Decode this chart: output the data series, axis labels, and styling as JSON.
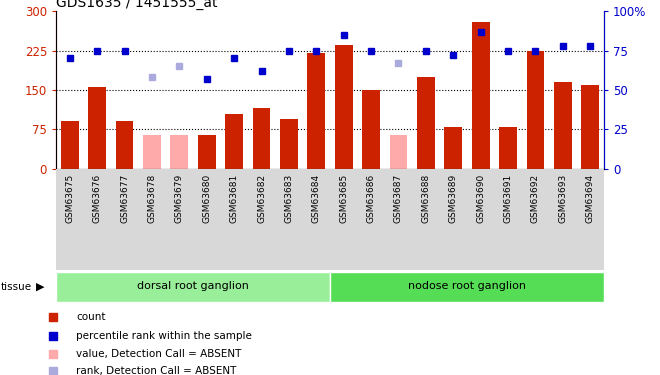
{
  "title": "GDS1635 / 1451555_at",
  "samples": [
    "GSM63675",
    "GSM63676",
    "GSM63677",
    "GSM63678",
    "GSM63679",
    "GSM63680",
    "GSM63681",
    "GSM63682",
    "GSM63683",
    "GSM63684",
    "GSM63685",
    "GSM63686",
    "GSM63687",
    "GSM63688",
    "GSM63689",
    "GSM63690",
    "GSM63691",
    "GSM63692",
    "GSM63693",
    "GSM63694"
  ],
  "count_values": [
    90,
    155,
    90,
    65,
    65,
    65,
    105,
    115,
    95,
    220,
    235,
    150,
    65,
    175,
    80,
    280,
    80,
    225,
    165,
    160
  ],
  "absent_mask": [
    false,
    false,
    false,
    true,
    true,
    false,
    false,
    false,
    false,
    false,
    false,
    false,
    true,
    false,
    false,
    false,
    false,
    false,
    false,
    false
  ],
  "rank_values": [
    70,
    75,
    75,
    58,
    65,
    57,
    70,
    62,
    75,
    75,
    85,
    75,
    67,
    75,
    72,
    87,
    75,
    75,
    78,
    78
  ],
  "rank_absent_mask": [
    false,
    false,
    false,
    true,
    true,
    false,
    false,
    false,
    false,
    false,
    false,
    false,
    true,
    false,
    false,
    false,
    false,
    false,
    false,
    false
  ],
  "left_ylim": [
    0,
    300
  ],
  "right_ylim": [
    0,
    100
  ],
  "left_yticks": [
    0,
    75,
    150,
    225,
    300
  ],
  "right_yticks": [
    0,
    25,
    50,
    75,
    100
  ],
  "bar_color": "#CC2200",
  "bar_absent_color": "#FFAAAA",
  "rank_color": "#0000CC",
  "rank_absent_color": "#AAAADD",
  "tissue_groups": [
    {
      "label": "dorsal root ganglion",
      "start": 0,
      "end": 9,
      "color": "#99EE99"
    },
    {
      "label": "nodose root ganglion",
      "start": 10,
      "end": 19,
      "color": "#55DD55"
    }
  ],
  "bg_color": "#FFFFFF",
  "plot_bg_color": "#FFFFFF",
  "tick_area_color": "#D8D8D8",
  "legend_items": [
    {
      "label": "count",
      "color": "#CC2200"
    },
    {
      "label": "percentile rank within the sample",
      "color": "#0000CC"
    },
    {
      "label": "value, Detection Call = ABSENT",
      "color": "#FFAAAA"
    },
    {
      "label": "rank, Detection Call = ABSENT",
      "color": "#AAAADD"
    }
  ]
}
